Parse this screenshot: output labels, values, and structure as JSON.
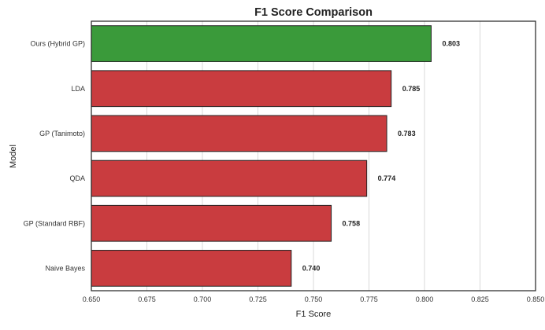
{
  "chart_data": {
    "type": "bar",
    "orientation": "horizontal",
    "title": "F1 Score Comparison",
    "xlabel": "F1 Score",
    "ylabel": "Model",
    "xlim": [
      0.65,
      0.85
    ],
    "xticks": [
      "0.650",
      "0.675",
      "0.700",
      "0.725",
      "0.750",
      "0.775",
      "0.800",
      "0.825",
      "0.850"
    ],
    "grid": "vertical",
    "categories": [
      "Ours (Hybrid GP)",
      "LDA",
      "GP (Tanimoto)",
      "QDA",
      "GP (Standard RBF)",
      "Naive Bayes"
    ],
    "values": [
      0.803,
      0.785,
      0.783,
      0.774,
      0.758,
      0.74
    ],
    "value_labels": [
      "0.803",
      "0.785",
      "0.783",
      "0.774",
      "0.758",
      "0.740"
    ],
    "highlight_index": 0,
    "colors": {
      "highlight": "#3a9a3a",
      "default": "#c93c3f",
      "edge": "#222222"
    }
  }
}
